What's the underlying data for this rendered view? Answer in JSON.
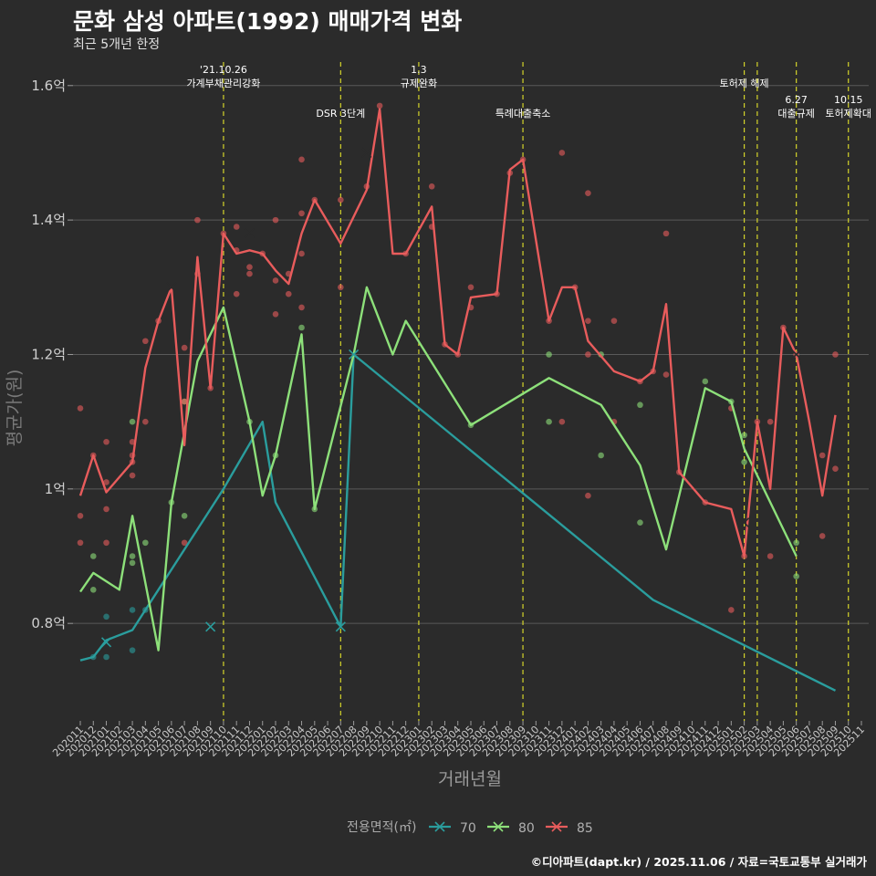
{
  "header": {
    "title": "문화 삼성 아파트(1992) 매매가격 변화",
    "subtitle": "최근 5개년 한정"
  },
  "caption": "©디아파트(dapt.kr) / 2025.11.06 / 자료=국토교통부 실거래가",
  "colors": {
    "background": "#2b2b2b",
    "grid": "#5a5a5a",
    "event_line": "#d4d42a",
    "70": "#2a9d9d",
    "80": "#8de07a",
    "85": "#e85c5c"
  },
  "chart_data": {
    "type": "line",
    "xlabel": "거래년월",
    "ylabel": "평균가(원)",
    "ylim": [
      0.655,
      1.635
    ],
    "yticks": [
      {
        "v": 0.8,
        "label": "0.8억"
      },
      {
        "v": 1.0,
        "label": "1억"
      },
      {
        "v": 1.2,
        "label": "1.2억"
      },
      {
        "v": 1.4,
        "label": "1.4억"
      },
      {
        "v": 1.6,
        "label": "1.6억"
      }
    ],
    "categories": [
      "202011",
      "202012",
      "202101",
      "202102",
      "202103",
      "202104",
      "202105",
      "202106",
      "202107",
      "202108",
      "202109",
      "202110",
      "202111",
      "202112",
      "202201",
      "202202",
      "202203",
      "202204",
      "202205",
      "202206",
      "202207",
      "202208",
      "202209",
      "202210",
      "202211",
      "202212",
      "202301",
      "202302",
      "202303",
      "202304",
      "202305",
      "202306",
      "202307",
      "202308",
      "202309",
      "202310",
      "202311",
      "202312",
      "202401",
      "202402",
      "202403",
      "202404",
      "202405",
      "202406",
      "202407",
      "202408",
      "202409",
      "202410",
      "202411",
      "202412",
      "202501",
      "202502",
      "202503",
      "202504",
      "202505",
      "202506",
      "202507",
      "202508",
      "202509",
      "202510",
      "202511"
    ],
    "legend": {
      "title": "전용면적(㎡)",
      "position": "bottom",
      "items": [
        "70",
        "80",
        "85"
      ]
    },
    "series": [
      {
        "name": "70",
        "points": [
          [
            0,
            0.745
          ],
          [
            1,
            0.75
          ],
          [
            2,
            0.775
          ],
          [
            4,
            0.79
          ],
          [
            6,
            0.85
          ],
          [
            10,
            0.97
          ],
          [
            11,
            1.0
          ],
          [
            14,
            1.1
          ],
          [
            15,
            0.98
          ],
          [
            20,
            0.795
          ],
          [
            21,
            1.2
          ],
          [
            44,
            0.835
          ],
          [
            58,
            0.7
          ]
        ]
      },
      {
        "name": "80",
        "points": [
          [
            0,
            0.847
          ],
          [
            1,
            0.875
          ],
          [
            3,
            0.85
          ],
          [
            4,
            0.96
          ],
          [
            6,
            0.76
          ],
          [
            7,
            0.98
          ],
          [
            9,
            1.19
          ],
          [
            11,
            1.27
          ],
          [
            13,
            1.1
          ],
          [
            14,
            0.99
          ],
          [
            15,
            1.05
          ],
          [
            17,
            1.23
          ],
          [
            18,
            0.97
          ],
          [
            21,
            1.2
          ],
          [
            22,
            1.3
          ],
          [
            24,
            1.2
          ],
          [
            25,
            1.25
          ],
          [
            30,
            1.095
          ],
          [
            36,
            1.165
          ],
          [
            40,
            1.125
          ],
          [
            43,
            1.035
          ],
          [
            45,
            0.91
          ],
          [
            48,
            1.15
          ],
          [
            50,
            1.13
          ],
          [
            51,
            1.06
          ],
          [
            55,
            0.9
          ]
        ]
      },
      {
        "name": "85",
        "points": [
          [
            0,
            0.99
          ],
          [
            1,
            1.05
          ],
          [
            2,
            0.995
          ],
          [
            4,
            1.04
          ],
          [
            5,
            1.18
          ],
          [
            6,
            1.25
          ],
          [
            7,
            1.3
          ],
          [
            8,
            1.065
          ],
          [
            9,
            1.345
          ],
          [
            10,
            1.15
          ],
          [
            11,
            1.38
          ],
          [
            12,
            1.35
          ],
          [
            13,
            1.355
          ],
          [
            14,
            1.35
          ],
          [
            15,
            1.325
          ],
          [
            16,
            1.305
          ],
          [
            17,
            1.38
          ],
          [
            18,
            1.43
          ],
          [
            20,
            1.365
          ],
          [
            22,
            1.445
          ],
          [
            23,
            1.565
          ],
          [
            24,
            1.35
          ],
          [
            25,
            1.35
          ],
          [
            27,
            1.42
          ],
          [
            28,
            1.215
          ],
          [
            29,
            1.2
          ],
          [
            30,
            1.285
          ],
          [
            32,
            1.29
          ],
          [
            33,
            1.475
          ],
          [
            34,
            1.49
          ],
          [
            36,
            1.25
          ],
          [
            37,
            1.3
          ],
          [
            38,
            1.3
          ],
          [
            39,
            1.22
          ],
          [
            41,
            1.175
          ],
          [
            43,
            1.16
          ],
          [
            44,
            1.175
          ],
          [
            45,
            1.275
          ],
          [
            46,
            1.025
          ],
          [
            48,
            0.98
          ],
          [
            50,
            0.97
          ],
          [
            51,
            0.9
          ],
          [
            52,
            1.1
          ],
          [
            53,
            1.0
          ],
          [
            54,
            1.24
          ],
          [
            55,
            1.2
          ],
          [
            56,
            1.1
          ],
          [
            57,
            0.99
          ],
          [
            58,
            1.11
          ]
        ]
      }
    ],
    "scatter": [
      {
        "series": "70",
        "x": 1,
        "y": 0.75
      },
      {
        "series": "70",
        "x": 2,
        "y": 0.81
      },
      {
        "series": "70",
        "x": 2,
        "y": 0.75
      },
      {
        "series": "70",
        "x": 4,
        "y": 0.76
      },
      {
        "series": "70",
        "x": 4,
        "y": 0.82
      },
      {
        "series": "70",
        "x": 5,
        "y": 0.82
      },
      {
        "series": "80",
        "x": 1,
        "y": 0.85
      },
      {
        "series": "80",
        "x": 1,
        "y": 0.9
      },
      {
        "series": "80",
        "x": 4,
        "y": 0.89
      },
      {
        "series": "80",
        "x": 4,
        "y": 0.9
      },
      {
        "series": "80",
        "x": 4,
        "y": 1.1
      },
      {
        "series": "80",
        "x": 5,
        "y": 0.92
      },
      {
        "series": "80",
        "x": 7,
        "y": 0.98
      },
      {
        "series": "80",
        "x": 8,
        "y": 1.13
      },
      {
        "series": "80",
        "x": 8,
        "y": 0.96
      },
      {
        "series": "80",
        "x": 13,
        "y": 1.1
      },
      {
        "series": "80",
        "x": 15,
        "y": 1.05
      },
      {
        "series": "80",
        "x": 17,
        "y": 1.24
      },
      {
        "series": "80",
        "x": 18,
        "y": 0.97
      },
      {
        "series": "80",
        "x": 30,
        "y": 1.095
      },
      {
        "series": "80",
        "x": 36,
        "y": 1.2
      },
      {
        "series": "80",
        "x": 36,
        "y": 1.1
      },
      {
        "series": "80",
        "x": 40,
        "y": 1.2
      },
      {
        "series": "80",
        "x": 40,
        "y": 1.05
      },
      {
        "series": "80",
        "x": 43,
        "y": 0.95
      },
      {
        "series": "80",
        "x": 43,
        "y": 1.125
      },
      {
        "series": "80",
        "x": 48,
        "y": 1.16
      },
      {
        "series": "80",
        "x": 50,
        "y": 1.13
      },
      {
        "series": "80",
        "x": 51,
        "y": 1.08
      },
      {
        "series": "80",
        "x": 51,
        "y": 1.04
      },
      {
        "series": "80",
        "x": 55,
        "y": 0.92
      },
      {
        "series": "80",
        "x": 55,
        "y": 0.87
      },
      {
        "series": "85",
        "x": 0,
        "y": 1.12
      },
      {
        "series": "85",
        "x": 0,
        "y": 0.96
      },
      {
        "series": "85",
        "x": 0,
        "y": 0.92
      },
      {
        "series": "85",
        "x": 1,
        "y": 1.05
      },
      {
        "series": "85",
        "x": 2,
        "y": 1.07
      },
      {
        "series": "85",
        "x": 2,
        "y": 1.01
      },
      {
        "series": "85",
        "x": 2,
        "y": 0.97
      },
      {
        "series": "85",
        "x": 2,
        "y": 0.92
      },
      {
        "series": "85",
        "x": 4,
        "y": 1.07
      },
      {
        "series": "85",
        "x": 4,
        "y": 1.05
      },
      {
        "series": "85",
        "x": 4,
        "y": 1.04
      },
      {
        "series": "85",
        "x": 4,
        "y": 1.02
      },
      {
        "series": "85",
        "x": 5,
        "y": 1.22
      },
      {
        "series": "85",
        "x": 5,
        "y": 1.1
      },
      {
        "series": "85",
        "x": 6,
        "y": 1.25
      },
      {
        "series": "85",
        "x": 8,
        "y": 1.21
      },
      {
        "series": "85",
        "x": 8,
        "y": 1.13
      },
      {
        "series": "85",
        "x": 8,
        "y": 0.92
      },
      {
        "series": "85",
        "x": 9,
        "y": 1.4
      },
      {
        "series": "85",
        "x": 9,
        "y": 1.32
      },
      {
        "series": "85",
        "x": 10,
        "y": 1.15
      },
      {
        "series": "85",
        "x": 11,
        "y": 1.38
      },
      {
        "series": "85",
        "x": 12,
        "y": 1.39
      },
      {
        "series": "85",
        "x": 12,
        "y": 1.355
      },
      {
        "series": "85",
        "x": 12,
        "y": 1.29
      },
      {
        "series": "85",
        "x": 13,
        "y": 1.33
      },
      {
        "series": "85",
        "x": 13,
        "y": 1.32
      },
      {
        "series": "85",
        "x": 14,
        "y": 1.35
      },
      {
        "series": "85",
        "x": 15,
        "y": 1.4
      },
      {
        "series": "85",
        "x": 15,
        "y": 1.31
      },
      {
        "series": "85",
        "x": 15,
        "y": 1.26
      },
      {
        "series": "85",
        "x": 16,
        "y": 1.32
      },
      {
        "series": "85",
        "x": 16,
        "y": 1.29
      },
      {
        "series": "85",
        "x": 17,
        "y": 1.49
      },
      {
        "series": "85",
        "x": 17,
        "y": 1.41
      },
      {
        "series": "85",
        "x": 17,
        "y": 1.35
      },
      {
        "series": "85",
        "x": 17,
        "y": 1.27
      },
      {
        "series": "85",
        "x": 18,
        "y": 1.43
      },
      {
        "series": "85",
        "x": 20,
        "y": 1.43
      },
      {
        "series": "85",
        "x": 20,
        "y": 1.3
      },
      {
        "series": "85",
        "x": 22,
        "y": 1.45
      },
      {
        "series": "85",
        "x": 23,
        "y": 1.57
      },
      {
        "series": "85",
        "x": 25,
        "y": 1.35
      },
      {
        "series": "85",
        "x": 27,
        "y": 1.45
      },
      {
        "series": "85",
        "x": 27,
        "y": 1.39
      },
      {
        "series": "85",
        "x": 28,
        "y": 1.215
      },
      {
        "series": "85",
        "x": 29,
        "y": 1.2
      },
      {
        "series": "85",
        "x": 30,
        "y": 1.3
      },
      {
        "series": "85",
        "x": 30,
        "y": 1.27
      },
      {
        "series": "85",
        "x": 32,
        "y": 1.29
      },
      {
        "series": "85",
        "x": 33,
        "y": 1.47
      },
      {
        "series": "85",
        "x": 34,
        "y": 1.49
      },
      {
        "series": "85",
        "x": 36,
        "y": 1.25
      },
      {
        "series": "85",
        "x": 37,
        "y": 1.5
      },
      {
        "series": "85",
        "x": 37,
        "y": 1.1
      },
      {
        "series": "85",
        "x": 38,
        "y": 1.3
      },
      {
        "series": "85",
        "x": 39,
        "y": 1.44
      },
      {
        "series": "85",
        "x": 39,
        "y": 1.25
      },
      {
        "series": "85",
        "x": 39,
        "y": 1.2
      },
      {
        "series": "85",
        "x": 39,
        "y": 0.99
      },
      {
        "series": "85",
        "x": 41,
        "y": 1.25
      },
      {
        "series": "85",
        "x": 41,
        "y": 1.1
      },
      {
        "series": "85",
        "x": 43,
        "y": 1.16
      },
      {
        "series": "85",
        "x": 44,
        "y": 1.175
      },
      {
        "series": "85",
        "x": 45,
        "y": 1.38
      },
      {
        "series": "85",
        "x": 45,
        "y": 1.17
      },
      {
        "series": "85",
        "x": 46,
        "y": 1.025
      },
      {
        "series": "85",
        "x": 48,
        "y": 0.98
      },
      {
        "series": "85",
        "x": 50,
        "y": 1.12
      },
      {
        "series": "85",
        "x": 50,
        "y": 0.82
      },
      {
        "series": "85",
        "x": 51,
        "y": 0.9
      },
      {
        "series": "85",
        "x": 52,
        "y": 1.1
      },
      {
        "series": "85",
        "x": 53,
        "y": 1.1
      },
      {
        "series": "85",
        "x": 53,
        "y": 0.9
      },
      {
        "series": "85",
        "x": 54,
        "y": 1.24
      },
      {
        "series": "85",
        "x": 55,
        "y": 1.2
      },
      {
        "series": "85",
        "x": 57,
        "y": 1.05
      },
      {
        "series": "85",
        "x": 57,
        "y": 0.93
      },
      {
        "series": "85",
        "x": 58,
        "y": 1.2
      },
      {
        "series": "85",
        "x": 58,
        "y": 1.03
      }
    ],
    "crosses": [
      {
        "series": "70",
        "x": 2,
        "y": 0.772
      },
      {
        "series": "70",
        "x": 10,
        "y": 0.795
      },
      {
        "series": "70",
        "x": 20,
        "y": 0.795
      },
      {
        "series": "70",
        "x": 21,
        "y": 1.2
      },
      {
        "series": "85",
        "x": 7,
        "y": 1.3
      },
      {
        "series": "85",
        "x": 13,
        "y": 1.38
      },
      {
        "series": "85",
        "x": 22,
        "y": 1.5
      },
      {
        "series": "85",
        "x": 51,
        "y": 0.95
      },
      {
        "series": "85",
        "x": 55,
        "y": 1.2
      }
    ],
    "events": [
      {
        "x": 11,
        "lines": [
          "'21.10.26",
          "가계부채관리강화"
        ],
        "level": 1
      },
      {
        "x": 20,
        "lines": [
          "DSR 3단계"
        ],
        "level": 2
      },
      {
        "x": 26,
        "lines": [
          "1.3",
          "규제완화"
        ],
        "level": 1
      },
      {
        "x": 34,
        "lines": [
          "특례대출축소"
        ],
        "level": 2
      },
      {
        "x": 51,
        "lines": [
          "토허제 해제"
        ],
        "level": 1
      },
      {
        "x": 52,
        "lines": [],
        "level": 1
      },
      {
        "x": 55,
        "lines": [
          "6.27",
          "대출규제"
        ],
        "level": 2
      },
      {
        "x": 59,
        "lines": [
          "10.15",
          "토허제확대"
        ],
        "level": 2
      }
    ]
  }
}
